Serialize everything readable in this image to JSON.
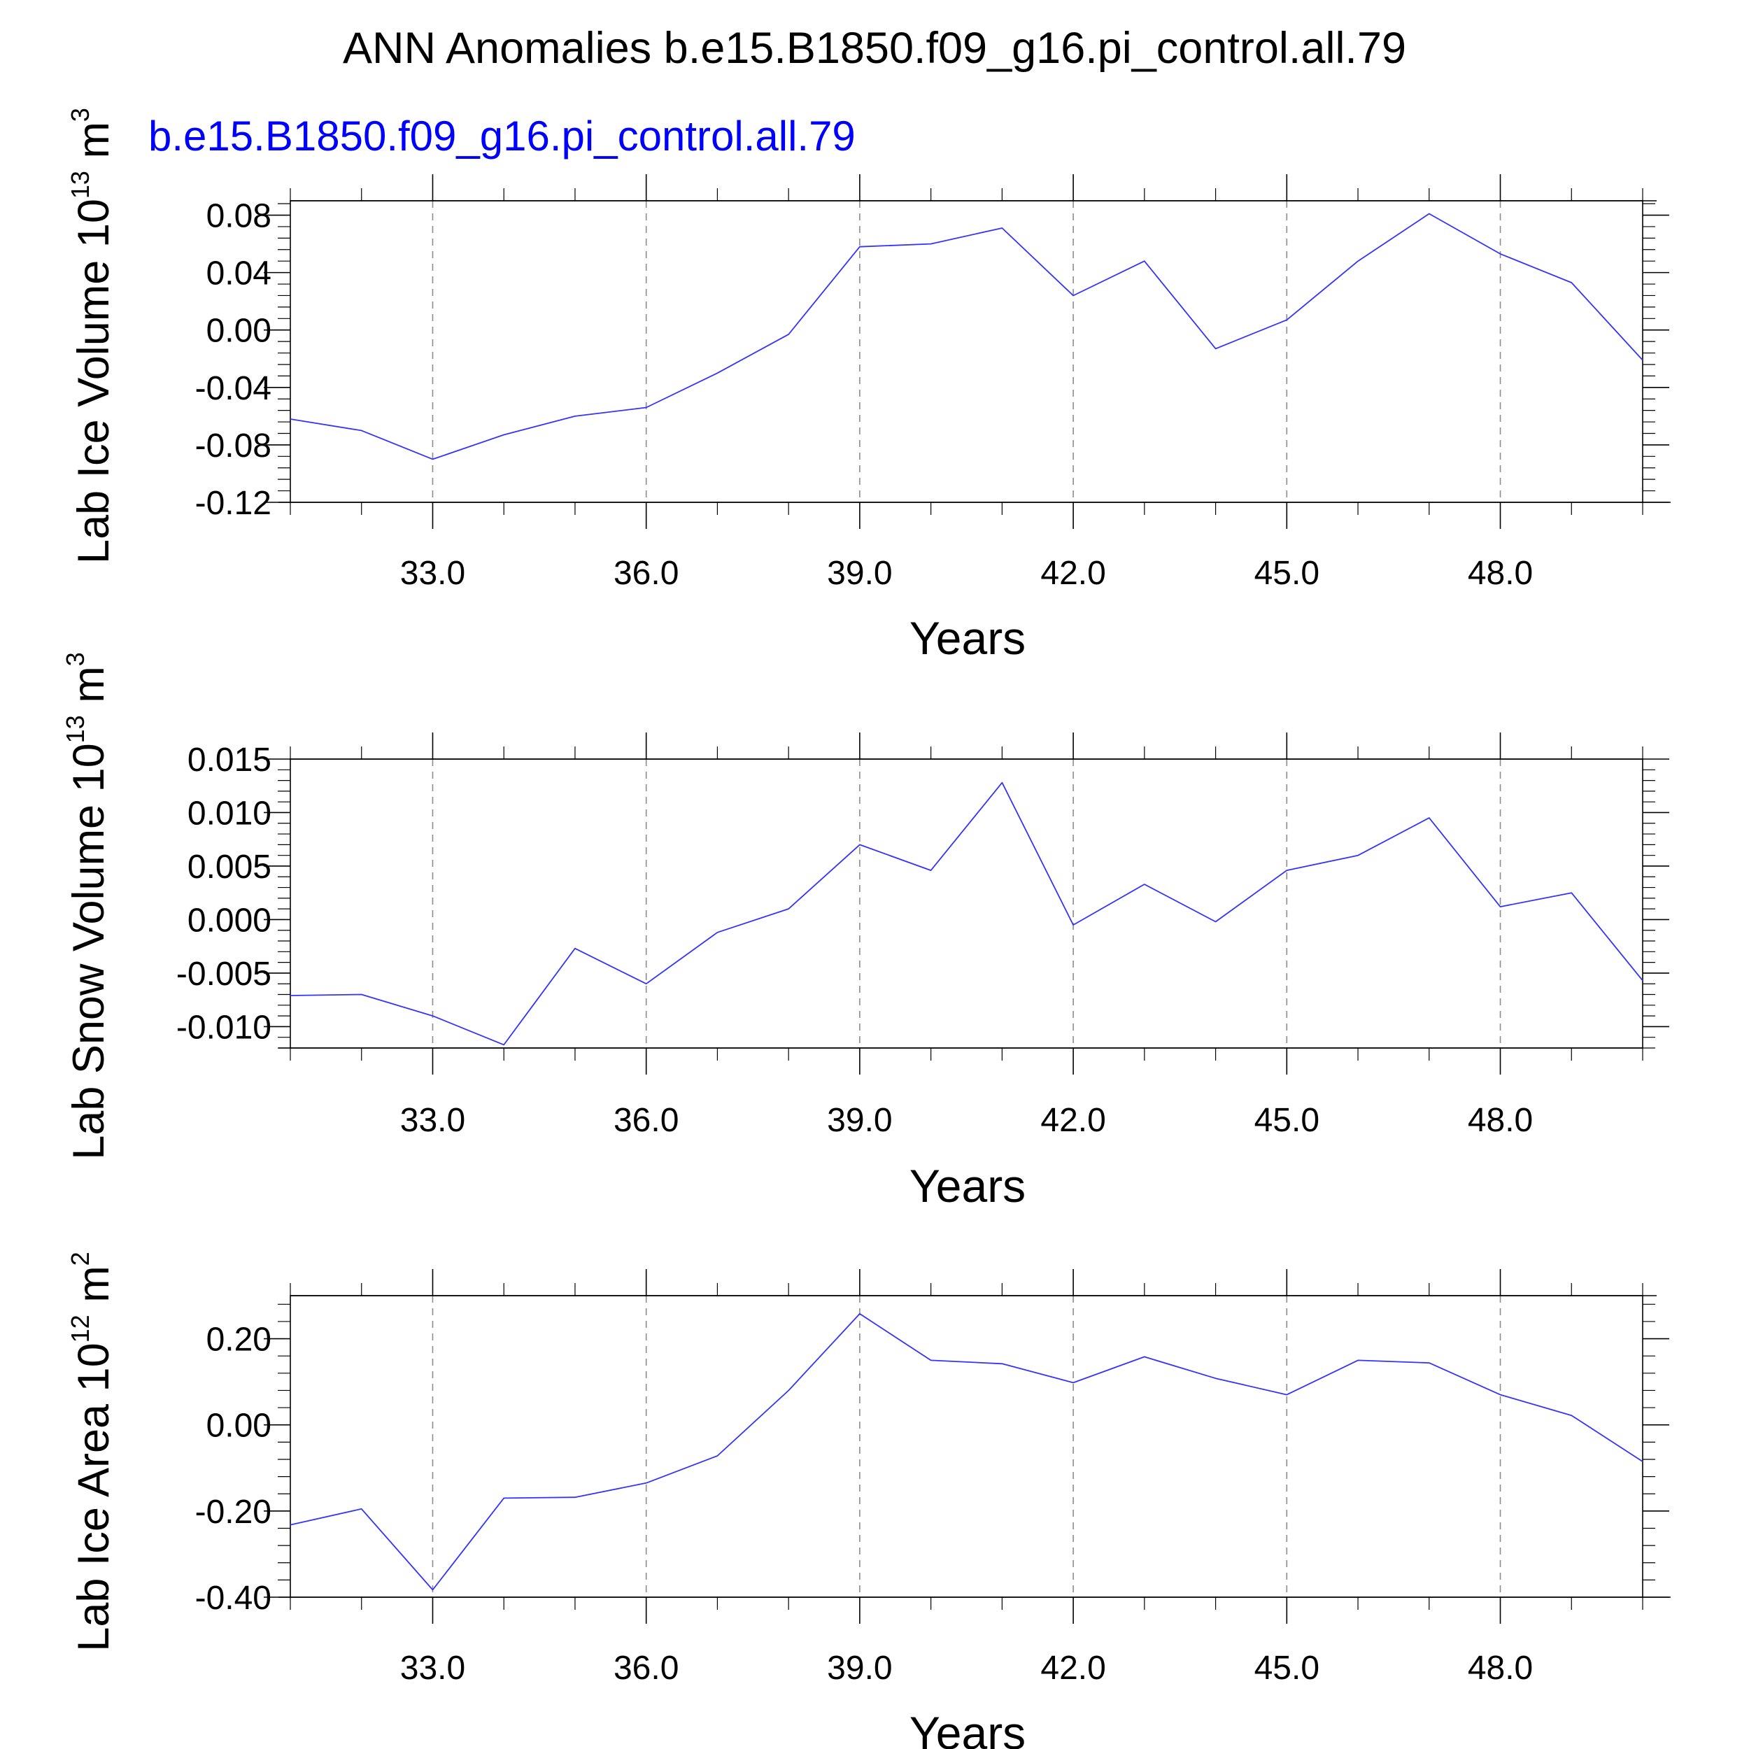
{
  "figure": {
    "title": "ANN Anomalies b.e15.B1850.f09_g16.pi_control.all.79",
    "subtitle": "b.e15.B1850.f09_g16.pi_control.all.79",
    "subtitle_color": "#0000ff",
    "line_color": "#3333ff"
  },
  "chart_data": [
    {
      "type": "line",
      "ylabel_main": "Lab Ice Volume 10",
      "ylabel_exp": "13",
      "ylabel_unit": " m",
      "ylabel_unit_exp": "3",
      "xlabel": "Years",
      "xlim": [
        31,
        50
      ],
      "ylim": [
        -0.12,
        0.09
      ],
      "yticks": [
        -0.12,
        -0.08,
        -0.04,
        0.0,
        0.04,
        0.08
      ],
      "ytick_labels": [
        "-0.12",
        "-0.08",
        "-0.04",
        "0.00",
        "0.04",
        "0.08"
      ],
      "xticks": [
        33,
        36,
        39,
        42,
        45,
        48
      ],
      "xtick_labels": [
        "33.0",
        "36.0",
        "39.0",
        "42.0",
        "45.0",
        "48.0"
      ],
      "grid": "vertical dashed at major x ticks",
      "series": [
        {
          "x": [
            31,
            32,
            33,
            34,
            35,
            36,
            37,
            38,
            39,
            40,
            41,
            42,
            43,
            44,
            45,
            46,
            47,
            48,
            49,
            50
          ],
          "values": [
            -0.062,
            -0.07,
            -0.09,
            -0.073,
            -0.06,
            -0.054,
            -0.03,
            -0.003,
            0.058,
            0.06,
            0.071,
            0.024,
            0.048,
            -0.013,
            0.007,
            0.048,
            0.081,
            0.053,
            0.033,
            -0.021
          ]
        }
      ]
    },
    {
      "type": "line",
      "ylabel_main": "Lab Snow Volume 10",
      "ylabel_exp": "13",
      "ylabel_unit": " m",
      "ylabel_unit_exp": "3",
      "xlabel": "Years",
      "xlim": [
        31,
        50
      ],
      "ylim": [
        -0.012,
        0.015
      ],
      "yticks": [
        -0.01,
        -0.005,
        0.0,
        0.005,
        0.01,
        0.015
      ],
      "ytick_labels": [
        "-0.010",
        "-0.005",
        "0.000",
        "0.005",
        "0.010",
        "0.015"
      ],
      "xticks": [
        33,
        36,
        39,
        42,
        45,
        48
      ],
      "xtick_labels": [
        "33.0",
        "36.0",
        "39.0",
        "42.0",
        "45.0",
        "48.0"
      ],
      "grid": "vertical dashed at major x ticks",
      "series": [
        {
          "x": [
            31,
            32,
            33,
            34,
            35,
            36,
            37,
            38,
            39,
            40,
            41,
            42,
            43,
            44,
            45,
            46,
            47,
            48,
            49,
            50
          ],
          "values": [
            -0.0071,
            -0.007,
            -0.009,
            -0.0117,
            -0.0027,
            -0.006,
            -0.0012,
            0.001,
            0.007,
            0.0046,
            0.0128,
            -0.0005,
            0.0033,
            -0.0002,
            0.0046,
            0.006,
            0.0095,
            0.0012,
            0.0025,
            -0.0057
          ]
        }
      ]
    },
    {
      "type": "line",
      "ylabel_main": "Lab Ice Area 10",
      "ylabel_exp": "12",
      "ylabel_unit": " m",
      "ylabel_unit_exp": "2",
      "xlabel": "Years",
      "xlim": [
        31,
        50
      ],
      "ylim": [
        -0.4,
        0.3
      ],
      "yticks": [
        -0.4,
        -0.2,
        0.0,
        0.2
      ],
      "ytick_labels": [
        "-0.40",
        "-0.20",
        "0.00",
        "0.20"
      ],
      "xticks": [
        33,
        36,
        39,
        42,
        45,
        48
      ],
      "xtick_labels": [
        "33.0",
        "36.0",
        "39.0",
        "42.0",
        "45.0",
        "48.0"
      ],
      "grid": "vertical dashed at major x ticks",
      "series": [
        {
          "x": [
            31,
            32,
            33,
            34,
            35,
            36,
            37,
            38,
            39,
            40,
            41,
            42,
            43,
            44,
            45,
            46,
            47,
            48,
            49,
            50
          ],
          "values": [
            -0.232,
            -0.195,
            -0.383,
            -0.17,
            -0.168,
            -0.135,
            -0.072,
            0.08,
            0.258,
            0.15,
            0.142,
            0.098,
            0.158,
            0.108,
            0.07,
            0.15,
            0.144,
            0.07,
            0.022,
            -0.085
          ]
        }
      ]
    }
  ]
}
